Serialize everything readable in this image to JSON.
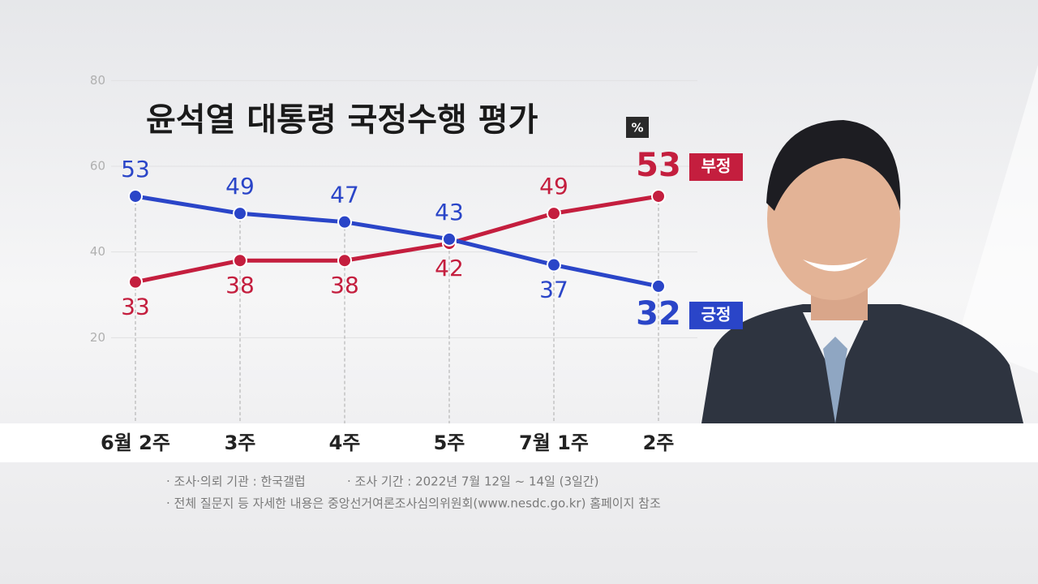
{
  "chart_data": {
    "type": "line",
    "title": "윤석열 대통령 국정수행 평가",
    "unit": "%",
    "categories": [
      "6월 2주",
      "3주",
      "4주",
      "5주",
      "7월 1주",
      "2주"
    ],
    "series": [
      {
        "name": "부정",
        "color": "#c41e3e",
        "values": [
          33,
          38,
          38,
          42,
          49,
          53
        ]
      },
      {
        "name": "긍정",
        "color": "#2a45c8",
        "values": [
          53,
          49,
          47,
          43,
          37,
          32
        ]
      }
    ],
    "ylim": [
      0,
      80
    ],
    "yticks": [
      20,
      40,
      60,
      80
    ],
    "grid": true,
    "notes": [
      "· 조사·의뢰 기관 : 한국갤럽",
      "· 조사 기간 : 2022년 7월 12일 ~ 14일 (3일간)",
      "· 전체 질문지 등 자세한 내용은 중앙선거여론조사심의위원회(www.nesdc.go.kr) 홈페이지 참조"
    ]
  }
}
